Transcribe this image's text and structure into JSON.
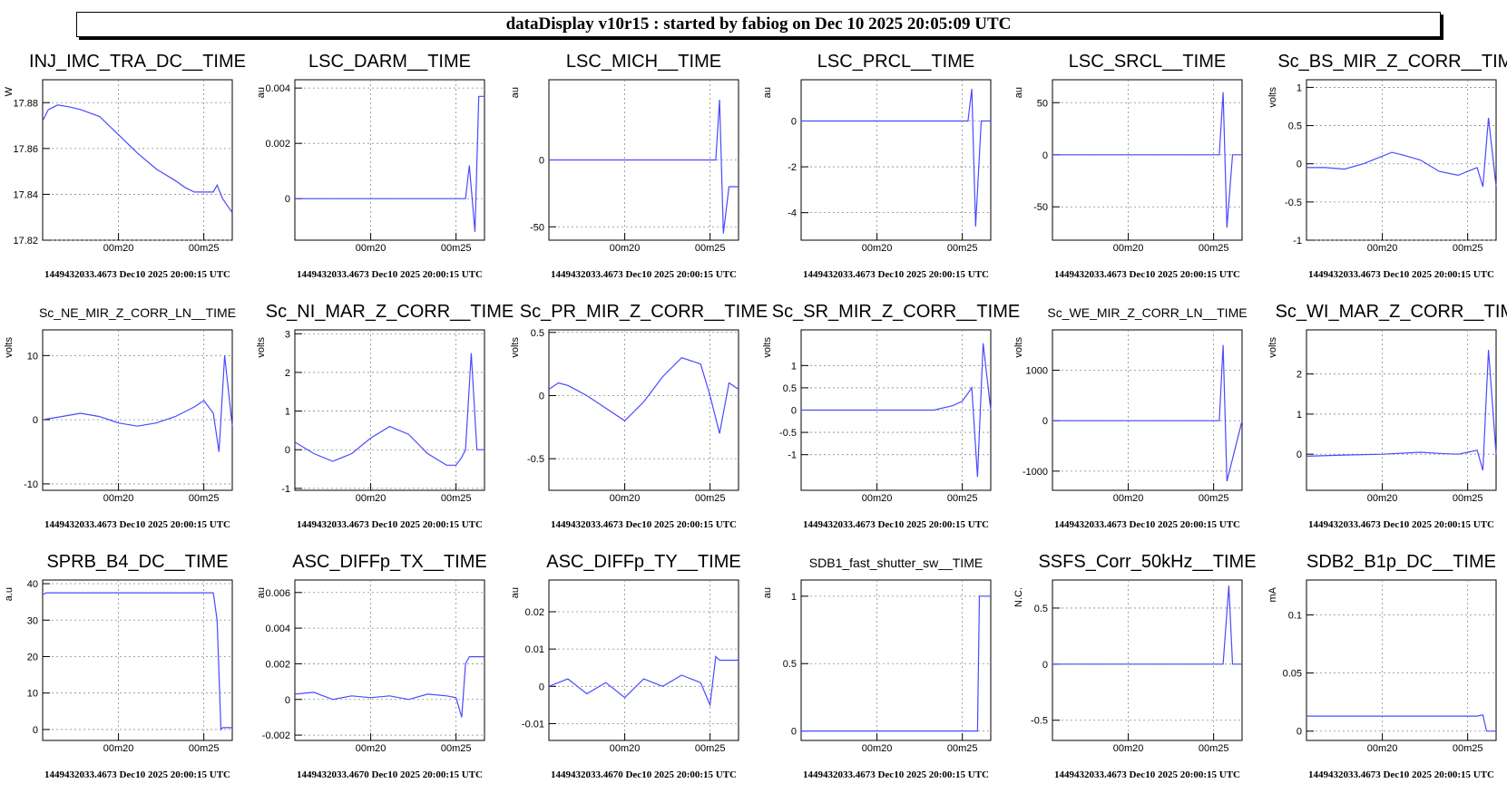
{
  "header": {
    "title": "dataDisplay v10r15 : started by fabiog on Dec 10 2025 20:05:09 UTC"
  },
  "chart_data": [
    {
      "type": "line",
      "title": "INJ_IMC_TRA_DC__TIME",
      "ylabel": "W",
      "ylim": [
        17.82,
        17.89
      ],
      "yticks": [
        17.82,
        17.84,
        17.86,
        17.88
      ],
      "ytick_labels": [
        "17.82",
        "17.84",
        "17.86",
        "17.88"
      ],
      "xtick_labels": [
        "00m20",
        "00m25"
      ],
      "footer": "1449432033.4673 Dec10 2025 20:00:15 UTC",
      "color": "#4a4aff",
      "x": [
        0,
        0.03,
        0.08,
        0.15,
        0.2,
        0.3,
        0.4,
        0.5,
        0.6,
        0.7,
        0.75,
        0.8,
        0.85,
        0.9,
        0.92,
        0.95,
        1
      ],
      "y": [
        17.872,
        17.877,
        17.879,
        17.878,
        17.877,
        17.874,
        17.866,
        17.858,
        17.851,
        17.846,
        17.843,
        17.841,
        17.841,
        17.841,
        17.844,
        17.838,
        17.832
      ]
    },
    {
      "type": "line",
      "title": "LSC_DARM__TIME",
      "ylabel": "au",
      "ylim": [
        -0.0015,
        0.0043
      ],
      "yticks": [
        0,
        0.002,
        0.004
      ],
      "ytick_labels": [
        "0",
        "0.002",
        "0.004"
      ],
      "xtick_labels": [
        "00m20",
        "00m25"
      ],
      "footer": "1449432033.4673 Dec10 2025 20:00:15 UTC",
      "color": "#4a4aff",
      "x": [
        0,
        0.2,
        0.4,
        0.6,
        0.7,
        0.8,
        0.85,
        0.88,
        0.9,
        0.92,
        0.95,
        0.97,
        1
      ],
      "y": [
        0,
        0,
        0,
        0,
        0,
        0,
        0,
        0,
        0,
        0.0012,
        -0.0012,
        0.0037,
        0.0037
      ]
    },
    {
      "type": "line",
      "title": "LSC_MICH__TIME",
      "ylabel": "au",
      "ylim": [
        -60,
        60
      ],
      "yticks": [
        -50,
        0
      ],
      "ytick_labels": [
        "-50",
        "0"
      ],
      "xtick_labels": [
        "00m20",
        "00m25"
      ],
      "footer": "1449432033.4673 Dec10 2025 20:00:15 UTC",
      "color": "#4a4aff",
      "x": [
        0,
        0.2,
        0.4,
        0.6,
        0.7,
        0.8,
        0.88,
        0.9,
        0.92,
        0.95,
        0.97,
        1
      ],
      "y": [
        0,
        0,
        0,
        0,
        0,
        0,
        0,
        45,
        -55,
        -20,
        -20,
        -20
      ]
    },
    {
      "type": "line",
      "title": "LSC_PRCL__TIME",
      "ylabel": "au",
      "ylim": [
        -5.2,
        1.8
      ],
      "yticks": [
        -4,
        -2,
        0
      ],
      "ytick_labels": [
        "-4",
        "-2",
        "0"
      ],
      "xtick_labels": [
        "00m20",
        "00m25"
      ],
      "footer": "1449432033.4673 Dec10 2025 20:00:15 UTC",
      "color": "#4a4aff",
      "x": [
        0,
        0.2,
        0.4,
        0.6,
        0.7,
        0.8,
        0.88,
        0.9,
        0.92,
        0.95,
        0.97,
        1
      ],
      "y": [
        0,
        0,
        0,
        0,
        0,
        0,
        0,
        1.4,
        -4.6,
        0,
        0,
        0
      ]
    },
    {
      "type": "line",
      "title": "LSC_SRCL__TIME",
      "ylabel": "au",
      "ylim": [
        -82,
        72
      ],
      "yticks": [
        -50,
        0,
        50
      ],
      "ytick_labels": [
        "-50",
        "0",
        "50"
      ],
      "xtick_labels": [
        "00m20",
        "00m25"
      ],
      "footer": "1449432033.4673 Dec10 2025 20:00:15 UTC",
      "color": "#4a4aff",
      "x": [
        0,
        0.2,
        0.4,
        0.6,
        0.7,
        0.8,
        0.88,
        0.9,
        0.92,
        0.95,
        0.97,
        1
      ],
      "y": [
        0,
        0,
        0,
        0,
        0,
        0,
        0,
        60,
        -70,
        0,
        0,
        0
      ]
    },
    {
      "type": "line",
      "title": "Sc_BS_MIR_Z_CORR__TIME",
      "ylabel": "volts",
      "ylim": [
        -1,
        1.1
      ],
      "yticks": [
        -1,
        -0.5,
        0,
        0.5,
        1
      ],
      "ytick_labels": [
        "-1",
        "-0.5",
        "0",
        "0.5",
        "1"
      ],
      "xtick_labels": [
        "00m20",
        "00m25"
      ],
      "footer": "1449432033.4673 Dec10 2025 20:00:15 UTC",
      "color": "#4a4aff",
      "x": [
        0,
        0.1,
        0.2,
        0.3,
        0.4,
        0.45,
        0.5,
        0.6,
        0.7,
        0.8,
        0.85,
        0.9,
        0.93,
        0.96,
        1
      ],
      "y": [
        -0.05,
        -0.05,
        -0.07,
        0,
        0.1,
        0.15,
        0.12,
        0.05,
        -0.1,
        -0.15,
        -0.1,
        -0.05,
        -0.3,
        0.6,
        -0.3
      ]
    },
    {
      "type": "line",
      "title": "Sc_NE_MIR_Z_CORR_LN__TIME",
      "ylabel": "volts",
      "ylim": [
        -11,
        14
      ],
      "yticks": [
        -10,
        0,
        10
      ],
      "ytick_labels": [
        "-10",
        "0",
        "10"
      ],
      "xtick_labels": [
        "00m20",
        "00m25"
      ],
      "footer": "1449432033.4673 Dec10 2025 20:00:15 UTC",
      "color": "#4a4aff",
      "x": [
        0,
        0.1,
        0.2,
        0.3,
        0.4,
        0.5,
        0.6,
        0.7,
        0.8,
        0.85,
        0.9,
        0.93,
        0.96,
        1
      ],
      "y": [
        0,
        0.5,
        1,
        0.5,
        -0.5,
        -1,
        -0.5,
        0.5,
        2,
        3,
        1,
        -5,
        10,
        -1
      ]
    },
    {
      "type": "line",
      "title": "Sc_NI_MAR_Z_CORR__TIME",
      "ylabel": "volts",
      "ylim": [
        -1.05,
        3.1
      ],
      "yticks": [
        -1,
        0,
        1,
        2,
        3
      ],
      "ytick_labels": [
        "-1",
        "0",
        "1",
        "2",
        "3"
      ],
      "xtick_labels": [
        "00m20",
        "00m25"
      ],
      "footer": "1449432033.4673 Dec10 2025 20:00:15 UTC",
      "color": "#4a4aff",
      "x": [
        0,
        0.1,
        0.2,
        0.3,
        0.4,
        0.5,
        0.6,
        0.7,
        0.8,
        0.85,
        0.88,
        0.9,
        0.93,
        0.96,
        1
      ],
      "y": [
        0.2,
        -0.1,
        -0.3,
        -0.1,
        0.3,
        0.6,
        0.4,
        -0.1,
        -0.4,
        -0.4,
        -0.2,
        0,
        2.5,
        0,
        0
      ]
    },
    {
      "type": "line",
      "title": "Sc_PR_MIR_Z_CORR__TIME",
      "ylabel": "volts",
      "ylim": [
        -0.75,
        0.52
      ],
      "yticks": [
        -0.5,
        0,
        0.5
      ],
      "ytick_labels": [
        "-0.5",
        "0",
        "0.5"
      ],
      "xtick_labels": [
        "00m20",
        "00m25"
      ],
      "footer": "1449432033.4673 Dec10 2025 20:00:15 UTC",
      "color": "#4a4aff",
      "x": [
        0,
        0.05,
        0.1,
        0.2,
        0.3,
        0.4,
        0.5,
        0.6,
        0.7,
        0.8,
        0.85,
        0.9,
        0.95,
        1
      ],
      "y": [
        0.05,
        0.1,
        0.08,
        0,
        -0.1,
        -0.2,
        -0.05,
        0.15,
        0.3,
        0.25,
        0,
        -0.3,
        0.1,
        0.05
      ]
    },
    {
      "type": "line",
      "title": "Sc_SR_MIR_Z_CORR__TIME",
      "ylabel": "volts",
      "ylim": [
        -1.8,
        1.8
      ],
      "yticks": [
        -1,
        -0.5,
        0,
        0.5,
        1
      ],
      "ytick_labels": [
        "-1",
        "-0.5",
        "0",
        "0.5",
        "1"
      ],
      "xtick_labels": [
        "00m20",
        "00m25"
      ],
      "footer": "1449432033.4673 Dec10 2025 20:00:15 UTC",
      "color": "#4a4aff",
      "x": [
        0,
        0.2,
        0.4,
        0.6,
        0.7,
        0.8,
        0.85,
        0.9,
        0.93,
        0.96,
        1
      ],
      "y": [
        0,
        0,
        0,
        0,
        0,
        0.1,
        0.2,
        0.5,
        -1.5,
        1.5,
        0
      ]
    },
    {
      "type": "line",
      "title": "Sc_WE_MIR_Z_CORR_LN__TIME",
      "ylabel": "volts",
      "ylim": [
        -1380,
        1800
      ],
      "yticks": [
        -1000,
        0,
        1000
      ],
      "ytick_labels": [
        "-1000",
        "0",
        "1000"
      ],
      "xtick_labels": [
        "00m20",
        "00m25"
      ],
      "footer": "1449432033.4673 Dec10 2025 20:00:15 UTC",
      "color": "#4a4aff",
      "x": [
        0,
        0.2,
        0.4,
        0.6,
        0.8,
        0.88,
        0.9,
        0.92,
        1
      ],
      "y": [
        0,
        0,
        0,
        0,
        0,
        0,
        1500,
        -1200,
        0
      ]
    },
    {
      "type": "line",
      "title": "Sc_WI_MAR_Z_CORR__TIME",
      "ylabel": "volts",
      "ylim": [
        -0.9,
        3.1
      ],
      "yticks": [
        0,
        1,
        2
      ],
      "ytick_labels": [
        "0",
        "1",
        "2"
      ],
      "xtick_labels": [
        "00m20",
        "00m25"
      ],
      "footer": "1449432033.4673 Dec10 2025 20:00:15 UTC",
      "color": "#4a4aff",
      "x": [
        0,
        0.2,
        0.4,
        0.6,
        0.7,
        0.8,
        0.85,
        0.9,
        0.93,
        0.96,
        1
      ],
      "y": [
        -0.05,
        -0.02,
        0,
        0.05,
        0.02,
        0,
        0.05,
        0.1,
        -0.4,
        2.6,
        0
      ]
    },
    {
      "type": "line",
      "title": "SPRB_B4_DC__TIME",
      "ylabel": "a.u",
      "ylim": [
        -3,
        41
      ],
      "yticks": [
        0,
        10,
        20,
        30,
        40
      ],
      "ytick_labels": [
        "0",
        "10",
        "20",
        "30",
        "40"
      ],
      "xtick_labels": [
        "00m20",
        "00m25"
      ],
      "footer": "1449432033.4673 Dec10 2025 20:00:15 UTC",
      "color": "#4a4aff",
      "x": [
        0,
        0.02,
        0.2,
        0.4,
        0.6,
        0.8,
        0.88,
        0.9,
        0.92,
        0.94,
        0.95,
        1
      ],
      "y": [
        37,
        37.5,
        37.5,
        37.5,
        37.5,
        37.5,
        37.5,
        37.5,
        30,
        0,
        0.5,
        0.5
      ]
    },
    {
      "type": "line",
      "title": "ASC_DIFFp_TX__TIME",
      "ylabel": "au",
      "ylim": [
        -0.0023,
        0.0067
      ],
      "yticks": [
        -0.002,
        0,
        0.002,
        0.004,
        0.006
      ],
      "ytick_labels": [
        "-0.002",
        "0",
        "0.002",
        "0.004",
        "0.006"
      ],
      "xtick_labels": [
        "00m20",
        "00m25"
      ],
      "footer": "1449432033.4670 Dec10 2025 20:00:15 UTC",
      "color": "#4a4aff",
      "x": [
        0,
        0.1,
        0.2,
        0.3,
        0.4,
        0.5,
        0.6,
        0.7,
        0.8,
        0.85,
        0.88,
        0.9,
        0.92,
        1
      ],
      "y": [
        0.0003,
        0.0004,
        0,
        0.0002,
        0.0001,
        0.0002,
        0,
        0.0003,
        0.0002,
        0.0001,
        -0.001,
        0.002,
        0.0024,
        0.0024
      ]
    },
    {
      "type": "line",
      "title": "ASC_DIFFp_TY__TIME",
      "ylabel": "au",
      "ylim": [
        -0.0145,
        0.0285
      ],
      "yticks": [
        -0.01,
        0,
        0.01,
        0.02
      ],
      "ytick_labels": [
        "-0.01",
        "0",
        "0.01",
        "0.02"
      ],
      "xtick_labels": [
        "00m20",
        "00m25"
      ],
      "footer": "1449432033.4670 Dec10 2025 20:00:15 UTC",
      "color": "#4a4aff",
      "x": [
        0,
        0.1,
        0.2,
        0.3,
        0.4,
        0.5,
        0.6,
        0.7,
        0.8,
        0.85,
        0.88,
        0.9,
        0.95,
        1
      ],
      "y": [
        0,
        0.002,
        -0.002,
        0.001,
        -0.003,
        0.002,
        0,
        0.003,
        0.001,
        -0.005,
        0.008,
        0.007,
        0.007,
        0.007
      ]
    },
    {
      "type": "line",
      "title": "SDB1_fast_shutter_sw__TIME",
      "ylabel": "au",
      "ylim": [
        -0.07,
        1.12
      ],
      "yticks": [
        0,
        0.5,
        1
      ],
      "ytick_labels": [
        "0",
        "0.5",
        "1"
      ],
      "xtick_labels": [
        "00m20",
        "00m25"
      ],
      "footer": "1449432033.4673 Dec10 2025 20:00:15 UTC",
      "color": "#4a4aff",
      "x": [
        0,
        0.2,
        0.4,
        0.6,
        0.8,
        0.9,
        0.93,
        0.94,
        0.95,
        1
      ],
      "y": [
        0,
        0,
        0,
        0,
        0,
        0,
        0,
        1,
        1,
        1
      ]
    },
    {
      "type": "line",
      "title": "SSFS_Corr_50kHz__TIME",
      "ylabel": "N.C.",
      "ylim": [
        -0.68,
        0.75
      ],
      "yticks": [
        -0.5,
        0,
        0.5
      ],
      "ytick_labels": [
        "-0.5",
        "0",
        "0.5"
      ],
      "xtick_labels": [
        "00m20",
        "00m25"
      ],
      "footer": "1449432033.4673 Dec10 2025 20:00:15 UTC",
      "color": "#4a4aff",
      "x": [
        0,
        0.2,
        0.4,
        0.6,
        0.8,
        0.9,
        0.93,
        0.95,
        1
      ],
      "y": [
        0,
        0,
        0,
        0,
        0,
        0,
        0.7,
        0,
        0
      ]
    },
    {
      "type": "line",
      "title": "SDB2_B1p_DC__TIME",
      "ylabel": "mA",
      "ylim": [
        -0.008,
        0.13
      ],
      "yticks": [
        0,
        0.05,
        0.1
      ],
      "ytick_labels": [
        "0",
        "0.05",
        "0.1"
      ],
      "xtick_labels": [
        "00m20",
        "00m25"
      ],
      "footer": "1449432033.4673 Dec10 2025 20:00:15 UTC",
      "color": "#4a4aff",
      "x": [
        0,
        0.2,
        0.4,
        0.6,
        0.8,
        0.9,
        0.93,
        0.95,
        1
      ],
      "y": [
        0.013,
        0.013,
        0.013,
        0.013,
        0.013,
        0.013,
        0.014,
        0,
        0
      ]
    }
  ]
}
